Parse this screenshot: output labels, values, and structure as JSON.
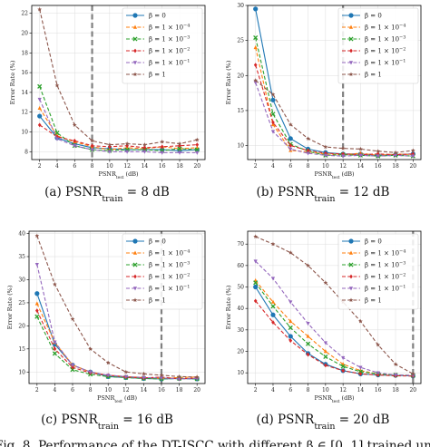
{
  "figure": {
    "bottom_caption": "Fig. 8.  Performance of the DT-JSCC with different β ∈ [0, 1] trained unde"
  },
  "chart_data": [
    {
      "type": "line",
      "caption": "(a) PSNR",
      "caption_sub": "train",
      "caption_value": " = 8 dB",
      "xlabel": "PSNR",
      "xlabel_sub": "test",
      "xlabel_unit": " (dB)",
      "ylabel": "Error Rate (%)",
      "x": [
        2,
        4,
        6,
        8,
        10,
        12,
        14,
        16,
        18,
        20
      ],
      "xticks": [
        2,
        4,
        6,
        8,
        10,
        12,
        14,
        16,
        18,
        20
      ],
      "ylim": [
        7.2,
        22.8
      ],
      "yticks": [
        8,
        10,
        12,
        14,
        16,
        18,
        20,
        22
      ],
      "vline": 8,
      "legend_position": "top-right",
      "series": [
        {
          "name": "β = 0",
          "color": "#1f77b4",
          "marker": "circle",
          "dash": "solid",
          "values": [
            11.6,
            9.4,
            8.8,
            8.4,
            8.3,
            8.2,
            8.2,
            8.2,
            8.1,
            8.2
          ]
        },
        {
          "name": "β = 1 × 10⁻⁴",
          "color": "#ff7f0e",
          "marker": "triangle",
          "dash": "dashed",
          "values": [
            12.4,
            9.6,
            9.0,
            8.5,
            8.2,
            8.4,
            8.3,
            8.5,
            8.3,
            8.4
          ]
        },
        {
          "name": "β = 1 × 10⁻³",
          "color": "#2ca02c",
          "marker": "x",
          "dash": "dashed",
          "values": [
            14.6,
            9.9,
            8.6,
            8.2,
            8.1,
            8.2,
            8.2,
            8.1,
            8.3,
            8.2
          ]
        },
        {
          "name": "β = 1 × 10⁻²",
          "color": "#d62728",
          "marker": "diamond",
          "dash": "dashed",
          "values": [
            10.7,
            9.5,
            9.1,
            8.6,
            8.5,
            8.6,
            8.4,
            8.5,
            8.6,
            8.7
          ]
        },
        {
          "name": "β = 1 × 10⁻¹",
          "color": "#9467bd",
          "marker": "triangle-down",
          "dash": "dashed",
          "values": [
            13.3,
            9.3,
            8.6,
            8.2,
            8.0,
            8.0,
            8.0,
            7.9,
            7.9,
            7.9
          ]
        },
        {
          "name": "β = 1",
          "color": "#8c564b",
          "marker": "star",
          "dash": "dashed",
          "values": [
            22.4,
            14.7,
            10.7,
            9.1,
            8.7,
            8.8,
            8.7,
            9.0,
            8.8,
            9.2
          ]
        }
      ]
    },
    {
      "type": "line",
      "caption": "(b) PSNR",
      "caption_sub": "train",
      "caption_value": " = 12 dB",
      "xlabel": "PSNR",
      "xlabel_sub": "test",
      "xlabel_unit": " (dB)",
      "ylabel": "Error Rate (%)",
      "x": [
        2,
        4,
        6,
        8,
        10,
        12,
        14,
        16,
        18,
        20
      ],
      "xticks": [
        2,
        4,
        6,
        8,
        10,
        12,
        14,
        16,
        18,
        20
      ],
      "ylim": [
        8.0,
        30.0
      ],
      "yticks": [
        10,
        15,
        20,
        25,
        30
      ],
      "vline": 12,
      "legend_position": "top-right",
      "series": [
        {
          "name": "β = 0",
          "color": "#1f77b4",
          "marker": "circle",
          "dash": "solid",
          "values": [
            29.5,
            16.5,
            11.0,
            9.5,
            9.0,
            8.8,
            8.8,
            8.6,
            8.7,
            8.8
          ]
        },
        {
          "name": "β = 1 × 10⁻⁴",
          "color": "#ff7f0e",
          "marker": "triangle",
          "dash": "dashed",
          "values": [
            24.0,
            13.0,
            9.3,
            9.1,
            8.8,
            8.7,
            8.9,
            8.6,
            8.8,
            8.7
          ]
        },
        {
          "name": "β = 1 × 10⁻³",
          "color": "#2ca02c",
          "marker": "x",
          "dash": "dashed",
          "values": [
            25.4,
            14.5,
            10.2,
            9.2,
            8.6,
            8.7,
            8.6,
            8.5,
            8.6,
            8.5
          ]
        },
        {
          "name": "β = 1 × 10⁻²",
          "color": "#d62728",
          "marker": "diamond",
          "dash": "dashed",
          "values": [
            21.5,
            13.3,
            10.0,
            9.3,
            8.9,
            8.8,
            8.7,
            8.8,
            8.7,
            8.8
          ]
        },
        {
          "name": "β = 1 × 10⁻¹",
          "color": "#9467bd",
          "marker": "triangle-down",
          "dash": "dashed",
          "values": [
            19.0,
            12.0,
            9.5,
            8.9,
            8.6,
            8.5,
            8.6,
            8.5,
            8.6,
            8.5
          ]
        },
        {
          "name": "β = 1",
          "color": "#8c564b",
          "marker": "star",
          "dash": "dashed",
          "values": [
            19.3,
            17.3,
            13.0,
            11.0,
            9.8,
            9.6,
            9.5,
            9.2,
            9.0,
            9.3
          ]
        }
      ]
    },
    {
      "type": "line",
      "caption": "(c) PSNR",
      "caption_sub": "train",
      "caption_value": " = 16 dB",
      "xlabel": "PSNR",
      "xlabel_sub": "test",
      "xlabel_unit": " (dB)",
      "ylabel": "Error Rate (%)",
      "x": [
        2,
        4,
        6,
        8,
        10,
        12,
        14,
        16,
        18,
        20
      ],
      "xticks": [
        2,
        4,
        6,
        8,
        10,
        12,
        14,
        16,
        18,
        20
      ],
      "ylim": [
        7.5,
        40.5
      ],
      "yticks": [
        10,
        15,
        20,
        25,
        30,
        35,
        40
      ],
      "vline": 16,
      "legend_position": "top-right",
      "series": [
        {
          "name": "β = 0",
          "color": "#1f77b4",
          "marker": "circle",
          "dash": "solid",
          "values": [
            27.0,
            16.0,
            11.5,
            10.0,
            9.0,
            8.8,
            8.6,
            8.5,
            8.6,
            8.5
          ]
        },
        {
          "name": "β = 1 × 10⁻⁴",
          "color": "#ff7f0e",
          "marker": "triangle",
          "dash": "dashed",
          "values": [
            24.8,
            16.4,
            11.5,
            10.0,
            9.3,
            9.0,
            8.8,
            8.6,
            8.8,
            8.9
          ]
        },
        {
          "name": "β = 1 × 10⁻³",
          "color": "#2ca02c",
          "marker": "x",
          "dash": "dashed",
          "values": [
            22.0,
            14.0,
            10.5,
            9.5,
            9.0,
            8.8,
            8.6,
            8.5,
            8.6,
            8.5
          ]
        },
        {
          "name": "β = 1 × 10⁻²",
          "color": "#d62728",
          "marker": "diamond",
          "dash": "dashed",
          "values": [
            23.3,
            15.0,
            11.0,
            9.8,
            9.3,
            8.9,
            8.7,
            8.9,
            8.5,
            8.7
          ]
        },
        {
          "name": "β = 1 × 10⁻¹",
          "color": "#9467bd",
          "marker": "triangle-down",
          "dash": "dashed",
          "values": [
            33.3,
            16.5,
            11.5,
            10.0,
            9.3,
            9.0,
            8.8,
            8.7,
            8.5,
            8.6
          ]
        },
        {
          "name": "β = 1",
          "color": "#8c564b",
          "marker": "star",
          "dash": "dashed",
          "values": [
            39.5,
            29.0,
            21.5,
            15.0,
            12.0,
            10.0,
            9.6,
            9.3,
            9.0,
            8.9
          ]
        }
      ]
    },
    {
      "type": "line",
      "caption": "(d) PSNR",
      "caption_sub": "train",
      "caption_value": " = 20 dB",
      "xlabel": "PSNR",
      "xlabel_sub": "test",
      "xlabel_unit": " (dB)",
      "ylabel": "Error Rate (%)",
      "x": [
        2,
        4,
        6,
        8,
        10,
        12,
        14,
        16,
        18,
        20
      ],
      "xticks": [
        2,
        4,
        6,
        8,
        10,
        12,
        14,
        16,
        18,
        20
      ],
      "ylim": [
        5.0,
        76.0
      ],
      "yticks": [
        10,
        20,
        30,
        40,
        50,
        60,
        70
      ],
      "vline": 20,
      "legend_position": "top-right",
      "series": [
        {
          "name": "β = 0",
          "color": "#1f77b4",
          "marker": "circle",
          "dash": "solid",
          "values": [
            50.0,
            37.0,
            27.0,
            19.0,
            14.0,
            11.0,
            9.5,
            9.0,
            8.8,
            8.5
          ]
        },
        {
          "name": "β = 1 × 10⁻⁴",
          "color": "#ff7f0e",
          "marker": "triangle",
          "dash": "dashed",
          "values": [
            53.0,
            43.0,
            34.0,
            27.0,
            20.0,
            14.0,
            11.0,
            9.5,
            9.0,
            8.8
          ]
        },
        {
          "name": "β = 1 × 10⁻³",
          "color": "#2ca02c",
          "marker": "x",
          "dash": "dashed",
          "values": [
            52.0,
            41.0,
            31.0,
            23.5,
            17.5,
            13.0,
            10.5,
            9.5,
            9.0,
            8.7
          ]
        },
        {
          "name": "β = 1 × 10⁻²",
          "color": "#d62728",
          "marker": "diamond",
          "dash": "dashed",
          "values": [
            43.5,
            33.5,
            25.0,
            18.5,
            13.5,
            11.0,
            9.5,
            9.0,
            8.6,
            8.5
          ]
        },
        {
          "name": "β = 1 × 10⁻¹",
          "color": "#9467bd",
          "marker": "triangle-down",
          "dash": "dashed",
          "values": [
            62.0,
            54.0,
            43.0,
            33.0,
            24.0,
            17.0,
            12.5,
            10.0,
            9.0,
            8.8
          ]
        },
        {
          "name": "β = 1",
          "color": "#8c564b",
          "marker": "star",
          "dash": "dashed",
          "values": [
            73.5,
            70.0,
            66.0,
            60.0,
            52.0,
            43.0,
            34.0,
            23.0,
            14.0,
            9.5
          ]
        }
      ]
    }
  ]
}
